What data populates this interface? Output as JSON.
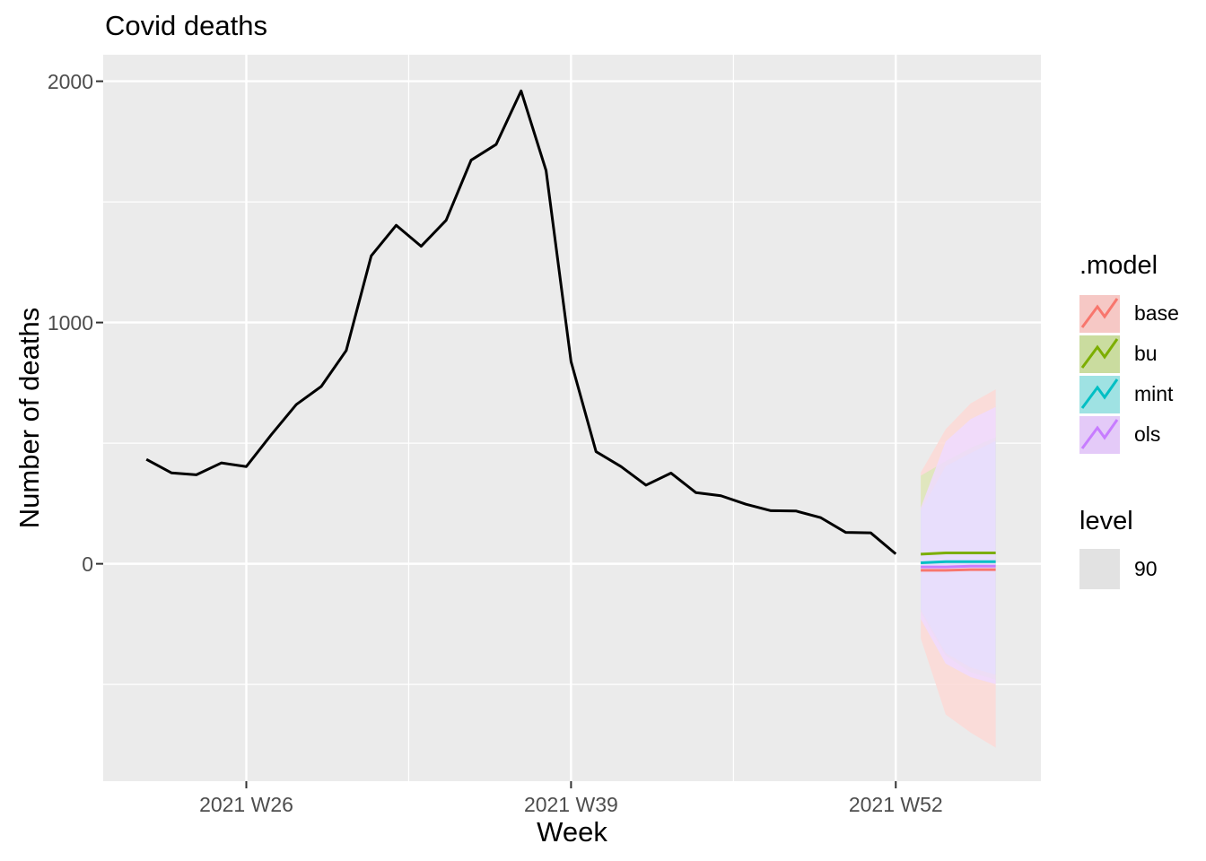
{
  "chart_data": {
    "type": "line",
    "title": "Covid deaths",
    "xlabel": "Week",
    "ylabel": "Number of deaths",
    "xlim": [
      20.27,
      57.81
    ],
    "ylim": [
      -901,
      2110
    ],
    "panel_bg": "#EBEBEB",
    "grid_color": "#FFFFFF",
    "x_ticks": [
      {
        "label": "2021 W26",
        "week": 26
      },
      {
        "label": "2021 W39",
        "week": 39
      },
      {
        "label": "2021 W52",
        "week": 52
      }
    ],
    "x_minor_ticks": [
      32.5,
      45.5
    ],
    "y_ticks": [
      {
        "label": "0",
        "value": 0
      },
      {
        "label": "1000",
        "value": 1000
      },
      {
        "label": "2000",
        "value": 2000
      }
    ],
    "y_minor_ticks": [
      -500,
      500,
      1500
    ],
    "history": {
      "name": "observed",
      "color": "#000000",
      "weeks": [
        22,
        23,
        24,
        25,
        26,
        27,
        28,
        29,
        30,
        31,
        32,
        33,
        34,
        35,
        36,
        37,
        38,
        39,
        40,
        41,
        42,
        43,
        44,
        45,
        46,
        47,
        48,
        49,
        50,
        51,
        52
      ],
      "values": [
        433,
        377,
        369,
        418,
        403,
        535,
        660,
        735,
        884,
        1276,
        1403,
        1316,
        1424,
        1673,
        1738,
        1960,
        1630,
        838,
        465,
        403,
        326,
        376,
        295,
        282,
        247,
        220,
        219,
        191,
        130,
        128,
        41
      ]
    },
    "forecast": {
      "weeks": [
        53,
        54,
        55,
        56
      ],
      "level": 90,
      "models": [
        {
          "name": "base",
          "color": "#F8766D",
          "mean": [
            -27,
            -27,
            -24,
            -24
          ],
          "lower": [
            -309,
            -625,
            -700,
            -762
          ],
          "upper": [
            378,
            558,
            665,
            723
          ]
        },
        {
          "name": "bu",
          "color": "#7CAE00",
          "mean": [
            40,
            45,
            45,
            45
          ],
          "lower": [
            -200,
            -380,
            -450,
            -480
          ],
          "upper": [
            365,
            425,
            480,
            524
          ]
        },
        {
          "name": "mint",
          "color": "#00BFC4",
          "mean": [
            4,
            9,
            9,
            9
          ],
          "lower": [
            -190,
            -370,
            -430,
            -460
          ],
          "upper": [
            220,
            404,
            459,
            509
          ]
        },
        {
          "name": "ols",
          "color": "#C77CFF",
          "mean": [
            -13,
            -13,
            -10,
            -10
          ],
          "lower": [
            -229,
            -414,
            -470,
            -499
          ],
          "upper": [
            232,
            507,
            600,
            650
          ]
        }
      ]
    },
    "legend": {
      "model_title": ".model",
      "level_title": "level",
      "level_items": [
        {
          "label": "90",
          "color": "#E2E2E2"
        }
      ]
    }
  }
}
